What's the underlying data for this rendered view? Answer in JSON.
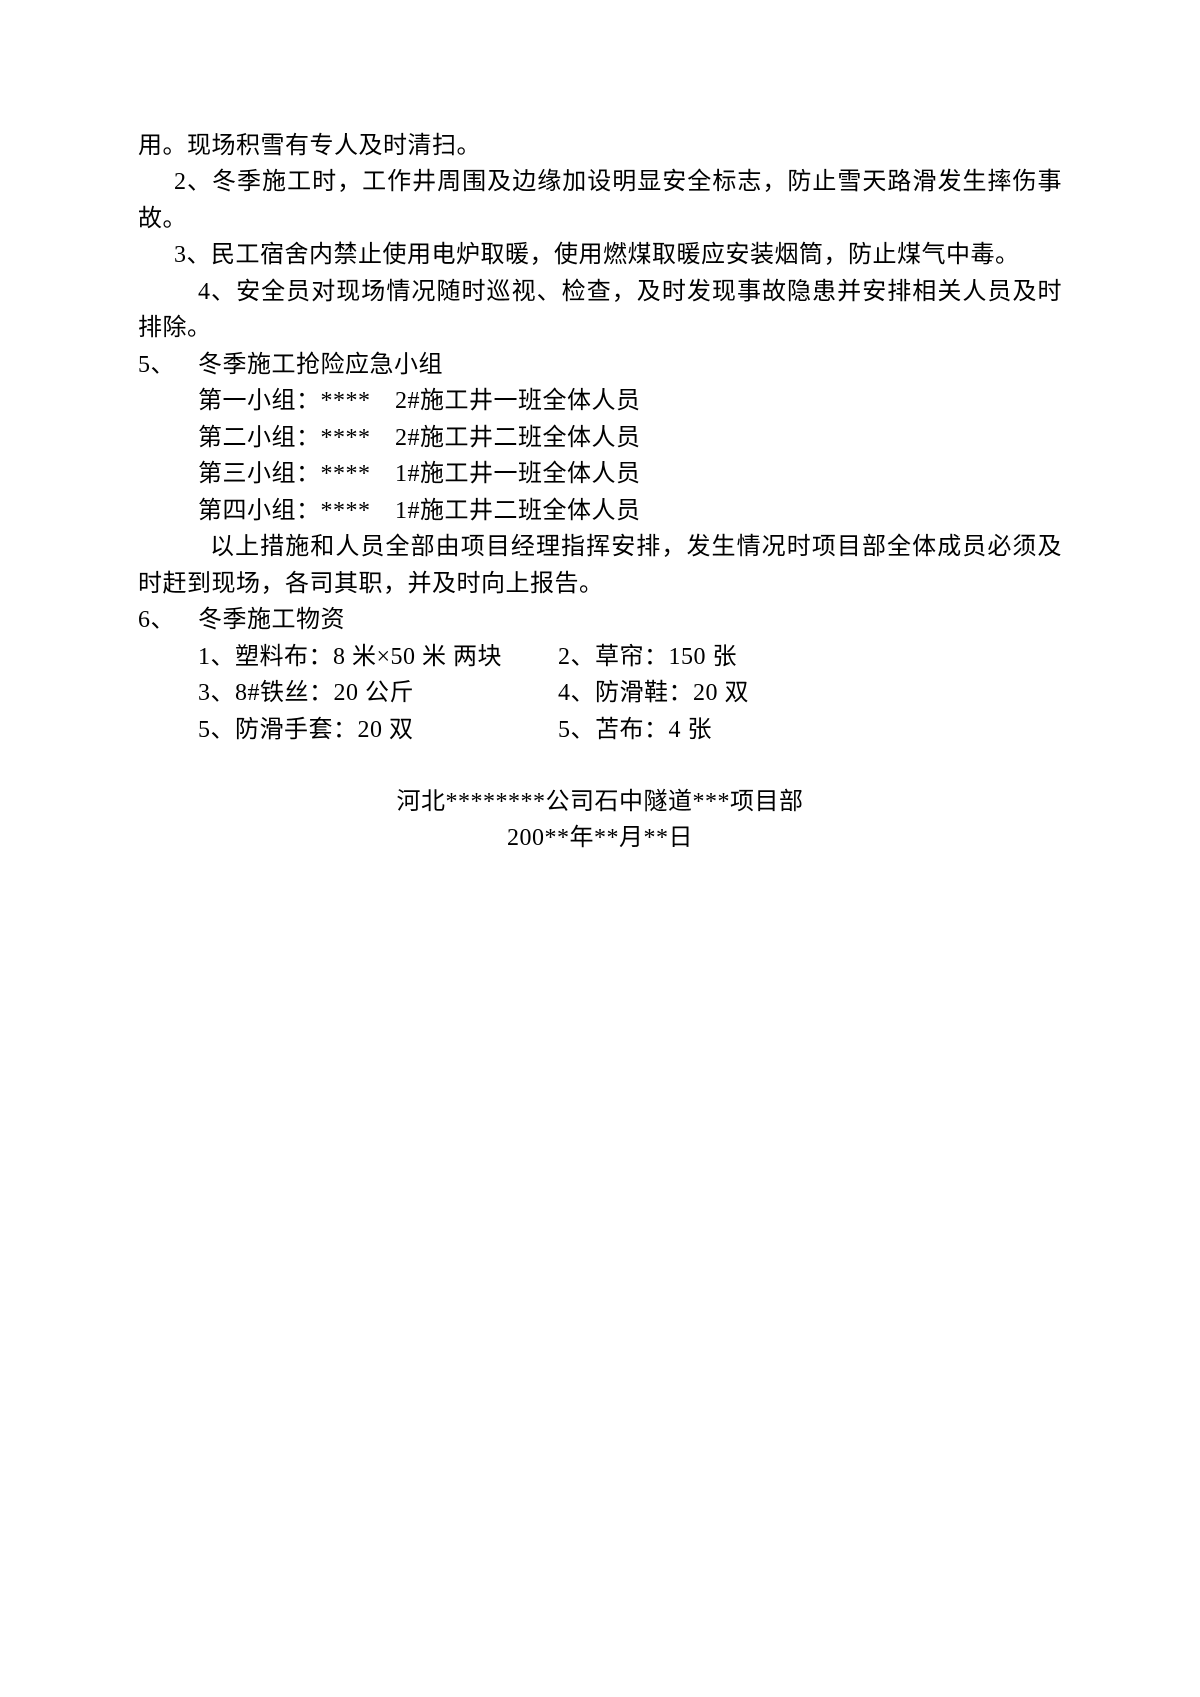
{
  "p1": "用。现场积雪有专人及时清扫。",
  "p2": "2、冬季施工时，工作井周围及边缘加设明显安全标志，防止雪天路滑发生摔伤事故。",
  "p3": "3、民工宿舍内禁止使用电炉取暖，使用燃煤取暖应安装烟筒，防止煤气中毒。",
  "p4": "4、安全员对现场情况随时巡视、检查，及时发现事故隐患并安排相关人员及时排除。",
  "sec5_num": "5、",
  "sec5_title": "冬季施工抢险应急小组",
  "group1": "第一小组：****　2#施工井一班全体人员",
  "group2": "第二小组：****　2#施工井二班全体人员",
  "group3": "第三小组：****　1#施工井一班全体人员",
  "group4": "第四小组：****　1#施工井二班全体人员",
  "p5": "以上措施和人员全部由项目经理指挥安排，发生情况时项目部全体成员必须及时赶到现场，各司其职，并及时向上报告。",
  "sec6_num": "6、",
  "sec6_title": "冬季施工物资",
  "supply1": "1、塑料布：8 米×50 米 两块",
  "supply2": "2、草帘：150 张",
  "supply3": "3、8#铁丝：20 公斤",
  "supply4": "4、防滑鞋：20 双",
  "supply5": "5、防滑手套：20 双",
  "supply6": "5、苫布：4 张",
  "sig1": "河北********公司石中隧道***项目部",
  "sig2": "200**年**月**日"
}
